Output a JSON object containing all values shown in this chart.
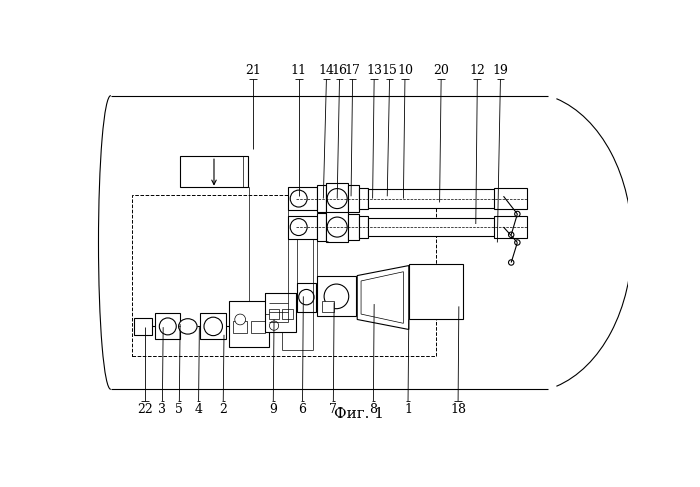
{
  "title": "Фиг. 1",
  "title_fontsize": 11,
  "bg": "#ffffff",
  "lc": "#000000",
  "top_labels": [
    [
      "21",
      213,
      370,
      213,
      460
    ],
    [
      "11",
      272,
      308,
      272,
      460
    ],
    [
      "14",
      304,
      305,
      308,
      460
    ],
    [
      "16",
      322,
      305,
      325,
      460
    ],
    [
      "17",
      340,
      308,
      342,
      460
    ],
    [
      "13",
      368,
      305,
      370,
      460
    ],
    [
      "15",
      387,
      308,
      390,
      460
    ],
    [
      "10",
      408,
      305,
      410,
      460
    ],
    [
      "20",
      455,
      300,
      457,
      460
    ],
    [
      "12",
      502,
      272,
      504,
      460
    ],
    [
      "19",
      530,
      248,
      534,
      460
    ]
  ],
  "bottom_labels": [
    [
      "22",
      72,
      138,
      72,
      42
    ],
    [
      "3",
      96,
      138,
      95,
      42
    ],
    [
      "5",
      118,
      142,
      117,
      42
    ],
    [
      "4",
      143,
      138,
      142,
      42
    ],
    [
      "2",
      175,
      128,
      174,
      42
    ],
    [
      "9",
      240,
      148,
      239,
      42
    ],
    [
      "6",
      278,
      178,
      277,
      42
    ],
    [
      "7",
      318,
      170,
      317,
      42
    ],
    [
      "8",
      370,
      168,
      369,
      42
    ],
    [
      "1",
      415,
      148,
      414,
      42
    ],
    [
      "18",
      480,
      165,
      479,
      42
    ]
  ]
}
